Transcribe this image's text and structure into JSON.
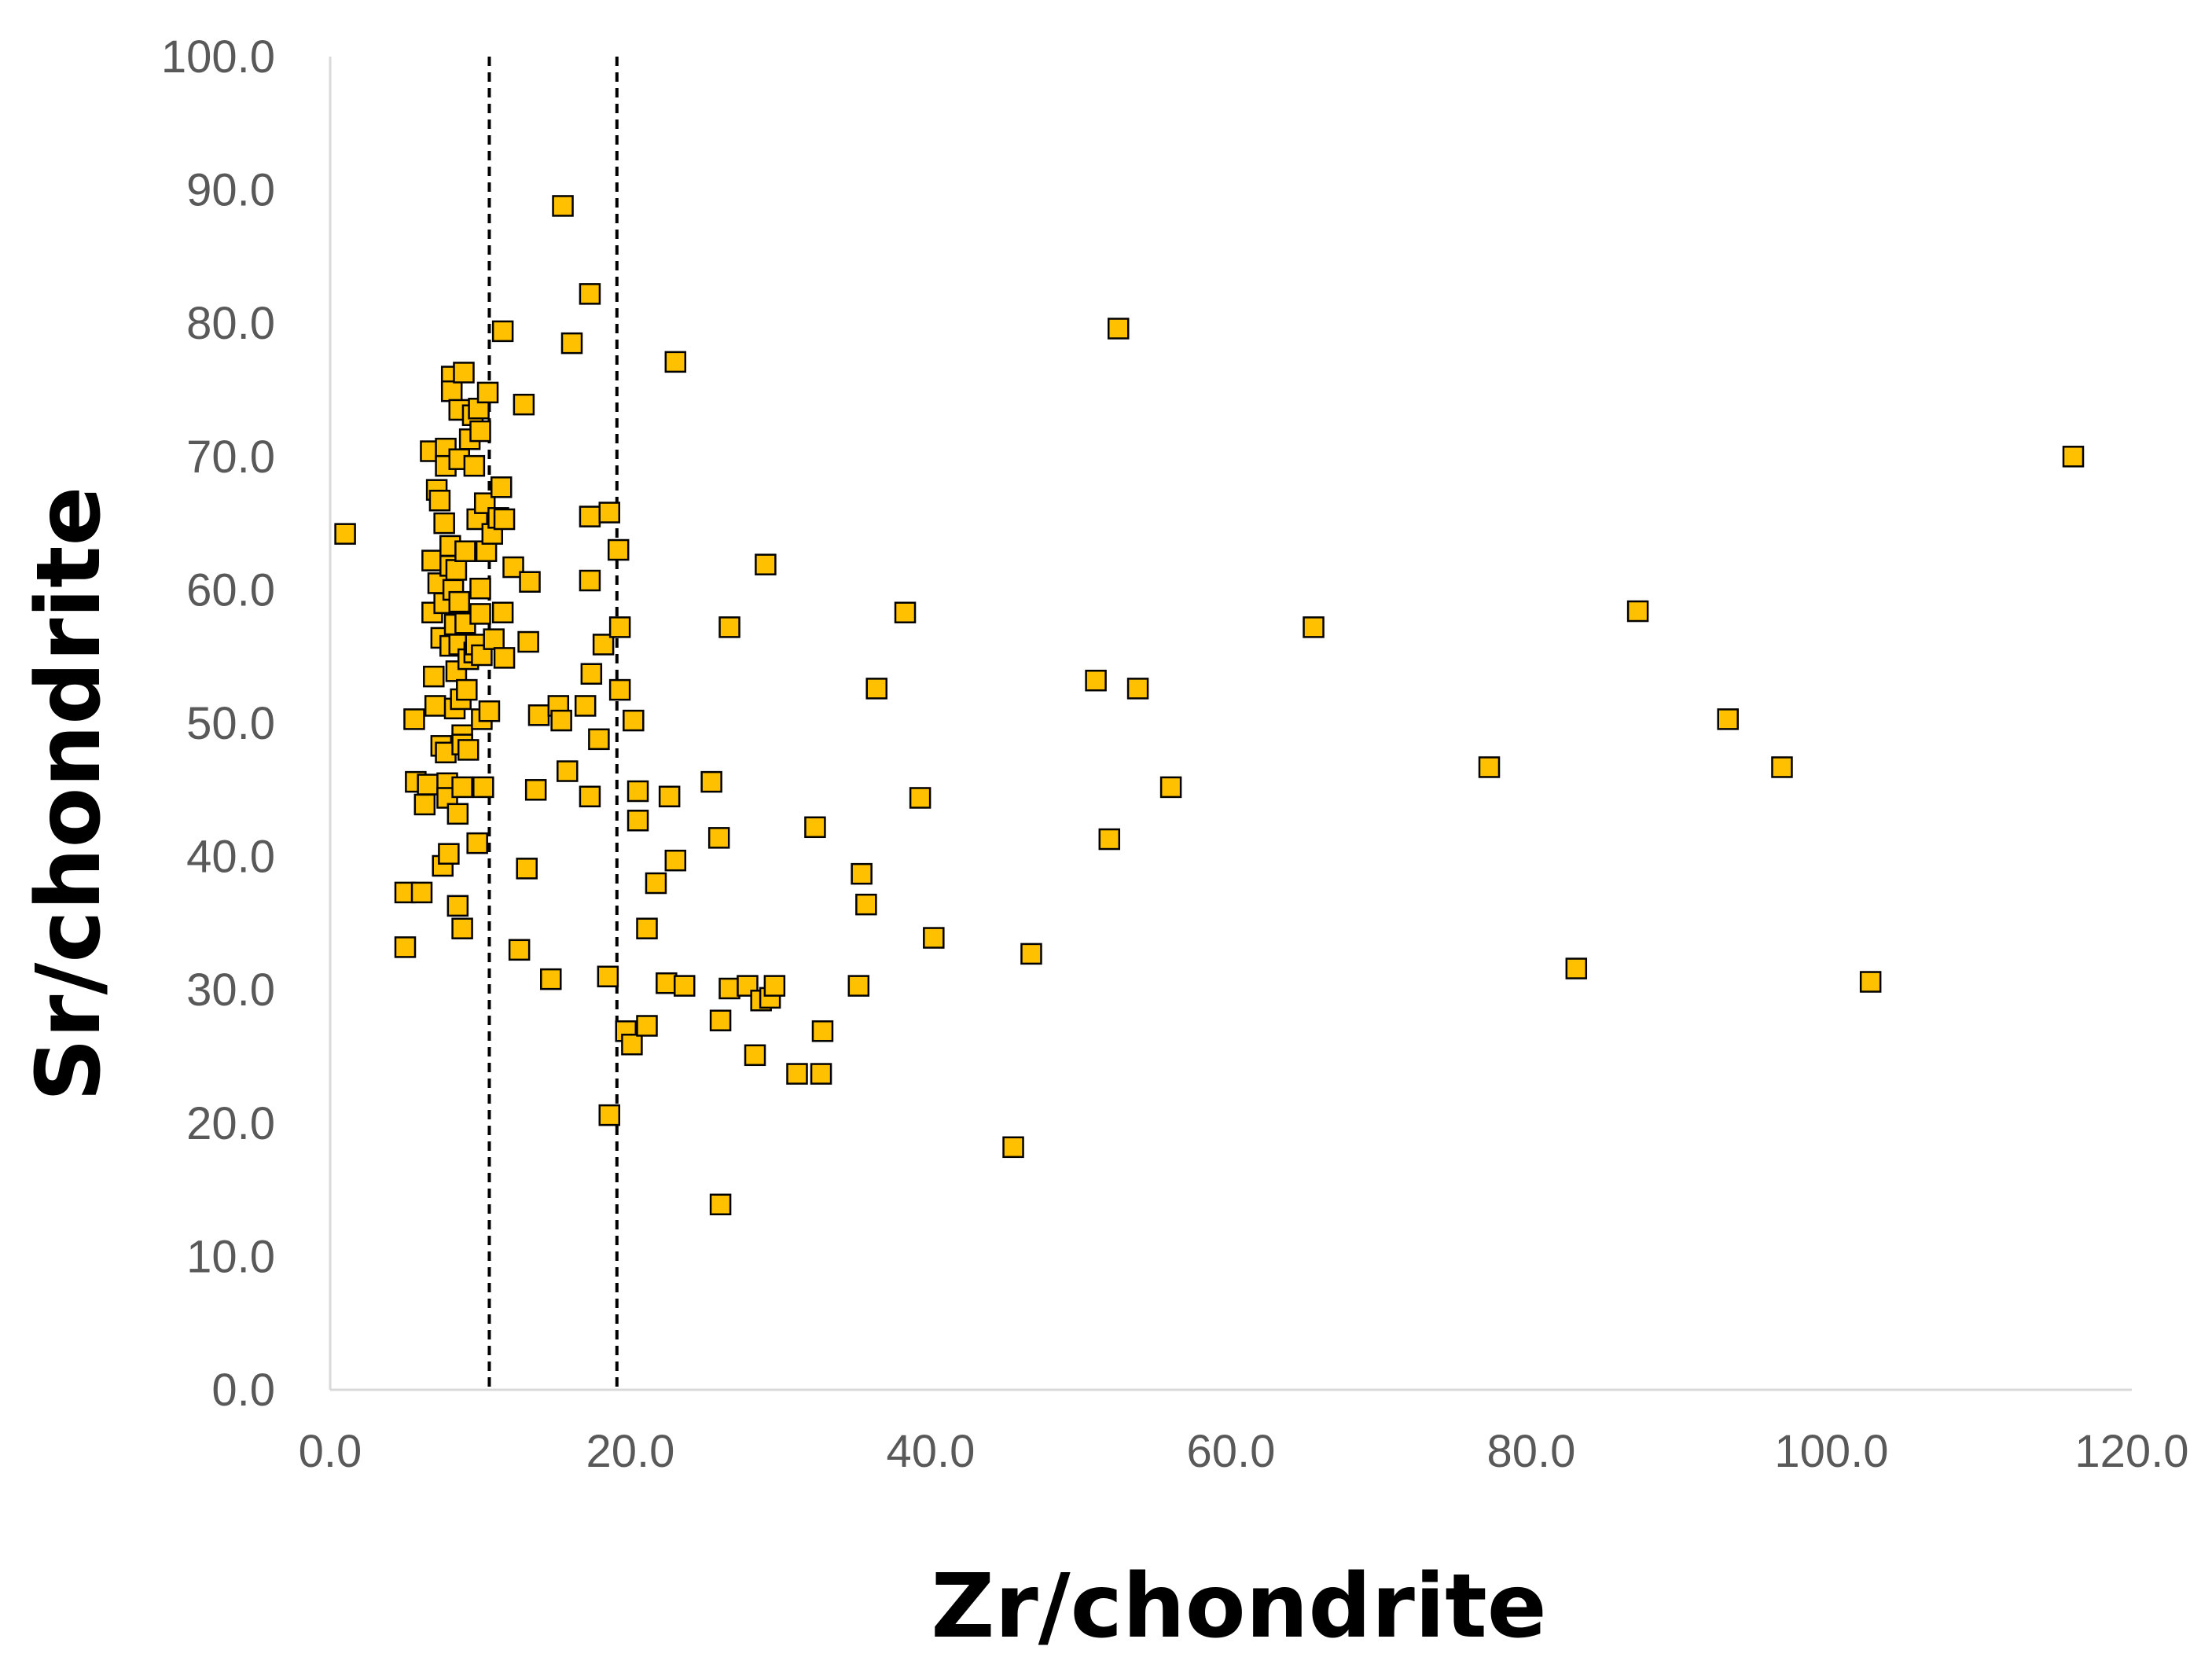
{
  "chart_data": {
    "type": "scatter",
    "title": "",
    "xlabel": "Zr/chondrite",
    "ylabel": "Sr/chondrite",
    "xlim": [
      0,
      120
    ],
    "ylim": [
      0,
      100
    ],
    "x_ticks": [
      "0.0",
      "20.0",
      "40.0",
      "60.0",
      "80.0",
      "100.0",
      "120.0"
    ],
    "y_ticks": [
      "0.0",
      "10.0",
      "20.0",
      "30.0",
      "40.0",
      "50.0",
      "60.0",
      "70.0",
      "80.0",
      "90.0",
      "100.0"
    ],
    "grid": false,
    "legend": "none",
    "reference_lines_x": [
      10.6,
      19.1
    ],
    "marker": {
      "shape": "square",
      "fill": "#FFC000",
      "stroke": "#000000"
    },
    "series": [
      {
        "points": [
          [
            1.0,
            64.2
          ],
          [
            5.0,
            37.3
          ],
          [
            5.0,
            33.2
          ],
          [
            5.6,
            50.3
          ],
          [
            5.7,
            45.6
          ],
          [
            6.1,
            37.3
          ],
          [
            6.3,
            43.9
          ],
          [
            6.5,
            45.4
          ],
          [
            6.7,
            70.4
          ],
          [
            6.8,
            62.2
          ],
          [
            6.8,
            58.3
          ],
          [
            6.9,
            53.5
          ],
          [
            7.0,
            51.3
          ],
          [
            7.1,
            67.5
          ],
          [
            7.2,
            60.5
          ],
          [
            7.3,
            66.7
          ],
          [
            7.4,
            56.4
          ],
          [
            7.4,
            48.3
          ],
          [
            7.5,
            39.3
          ],
          [
            7.6,
            65.0
          ],
          [
            7.6,
            59.0
          ],
          [
            7.7,
            70.6
          ],
          [
            7.7,
            69.3
          ],
          [
            7.7,
            47.8
          ],
          [
            7.8,
            45.5
          ],
          [
            7.8,
            44.4
          ],
          [
            7.9,
            40.2
          ],
          [
            8.0,
            63.3
          ],
          [
            8.0,
            61.8
          ],
          [
            8.0,
            55.8
          ],
          [
            8.1,
            76.0
          ],
          [
            8.1,
            74.9
          ],
          [
            8.2,
            60.0
          ],
          [
            8.3,
            57.4
          ],
          [
            8.3,
            51.1
          ],
          [
            8.4,
            61.5
          ],
          [
            8.4,
            53.9
          ],
          [
            8.5,
            43.2
          ],
          [
            8.5,
            36.3
          ],
          [
            8.6,
            73.5
          ],
          [
            8.6,
            69.8
          ],
          [
            8.6,
            59.1
          ],
          [
            8.6,
            55.9
          ],
          [
            8.7,
            51.8
          ],
          [
            8.8,
            49.1
          ],
          [
            8.8,
            48.4
          ],
          [
            8.8,
            45.2
          ],
          [
            8.8,
            34.6
          ],
          [
            8.9,
            76.3
          ],
          [
            9.0,
            62.9
          ],
          [
            9.0,
            57.5
          ],
          [
            9.1,
            52.5
          ],
          [
            9.2,
            54.8
          ],
          [
            9.2,
            48.0
          ],
          [
            9.3,
            71.3
          ],
          [
            9.5,
            73.1
          ],
          [
            9.6,
            69.3
          ],
          [
            9.6,
            55.3
          ],
          [
            9.7,
            55.9
          ],
          [
            9.8,
            65.3
          ],
          [
            9.8,
            41.0
          ],
          [
            9.9,
            73.6
          ],
          [
            10.0,
            71.9
          ],
          [
            10.0,
            60.1
          ],
          [
            10.0,
            58.2
          ],
          [
            10.1,
            55.1
          ],
          [
            10.1,
            50.3
          ],
          [
            10.2,
            45.2
          ],
          [
            10.3,
            66.5
          ],
          [
            10.4,
            62.9
          ],
          [
            10.5,
            74.8
          ],
          [
            10.6,
            50.9
          ],
          [
            10.8,
            64.2
          ],
          [
            10.9,
            56.3
          ],
          [
            11.2,
            65.4
          ],
          [
            11.4,
            67.7
          ],
          [
            11.5,
            79.4
          ],
          [
            11.5,
            58.3
          ],
          [
            11.6,
            54.9
          ],
          [
            11.6,
            65.3
          ],
          [
            12.2,
            61.7
          ],
          [
            12.6,
            33.0
          ],
          [
            12.9,
            73.9
          ],
          [
            13.1,
            39.1
          ],
          [
            13.2,
            56.1
          ],
          [
            13.3,
            60.6
          ],
          [
            13.7,
            45.0
          ],
          [
            13.9,
            50.6
          ],
          [
            14.7,
            30.8
          ],
          [
            15.2,
            51.3
          ],
          [
            15.4,
            50.2
          ],
          [
            15.5,
            88.8
          ],
          [
            15.8,
            46.4
          ],
          [
            16.1,
            78.5
          ],
          [
            17.0,
            51.3
          ],
          [
            17.3,
            82.2
          ],
          [
            17.3,
            44.5
          ],
          [
            17.3,
            60.7
          ],
          [
            17.3,
            65.5
          ],
          [
            17.4,
            53.7
          ],
          [
            17.9,
            48.8
          ],
          [
            18.2,
            55.9
          ],
          [
            18.5,
            31.0
          ],
          [
            18.6,
            65.8
          ],
          [
            18.6,
            20.6
          ],
          [
            19.2,
            63.0
          ],
          [
            19.3,
            57.2
          ],
          [
            19.3,
            52.5
          ],
          [
            19.7,
            26.9
          ],
          [
            20.1,
            25.9
          ],
          [
            20.2,
            50.2
          ],
          [
            20.5,
            44.9
          ],
          [
            20.5,
            42.7
          ],
          [
            21.1,
            27.3
          ],
          [
            21.1,
            34.6
          ],
          [
            21.7,
            38.0
          ],
          [
            22.4,
            30.5
          ],
          [
            22.6,
            44.5
          ],
          [
            23.0,
            77.1
          ],
          [
            23.0,
            39.7
          ],
          [
            23.6,
            30.3
          ],
          [
            25.4,
            45.6
          ],
          [
            25.9,
            41.4
          ],
          [
            26.0,
            27.7
          ],
          [
            26.0,
            13.9
          ],
          [
            26.6,
            57.2
          ],
          [
            26.6,
            30.1
          ],
          [
            27.8,
            30.3
          ],
          [
            28.3,
            25.1
          ],
          [
            28.7,
            29.2
          ],
          [
            29.0,
            61.9
          ],
          [
            29.3,
            29.4
          ],
          [
            29.6,
            30.3
          ],
          [
            31.1,
            23.7
          ],
          [
            32.3,
            42.2
          ],
          [
            32.7,
            23.7
          ],
          [
            32.8,
            26.9
          ],
          [
            35.2,
            30.3
          ],
          [
            35.4,
            38.7
          ],
          [
            35.7,
            36.4
          ],
          [
            36.4,
            52.6
          ],
          [
            38.3,
            58.3
          ],
          [
            39.3,
            44.4
          ],
          [
            40.2,
            33.9
          ],
          [
            45.5,
            18.2
          ],
          [
            46.7,
            32.7
          ],
          [
            51.0,
            53.2
          ],
          [
            51.9,
            41.3
          ],
          [
            52.5,
            79.6
          ],
          [
            53.8,
            52.6
          ],
          [
            56.0,
            45.2
          ],
          [
            65.5,
            57.2
          ],
          [
            77.2,
            46.7
          ],
          [
            83.0,
            31.6
          ],
          [
            87.1,
            58.4
          ],
          [
            93.1,
            50.3
          ],
          [
            96.7,
            46.7
          ],
          [
            102.6,
            30.6
          ],
          [
            116.1,
            70.0
          ]
        ]
      }
    ]
  }
}
